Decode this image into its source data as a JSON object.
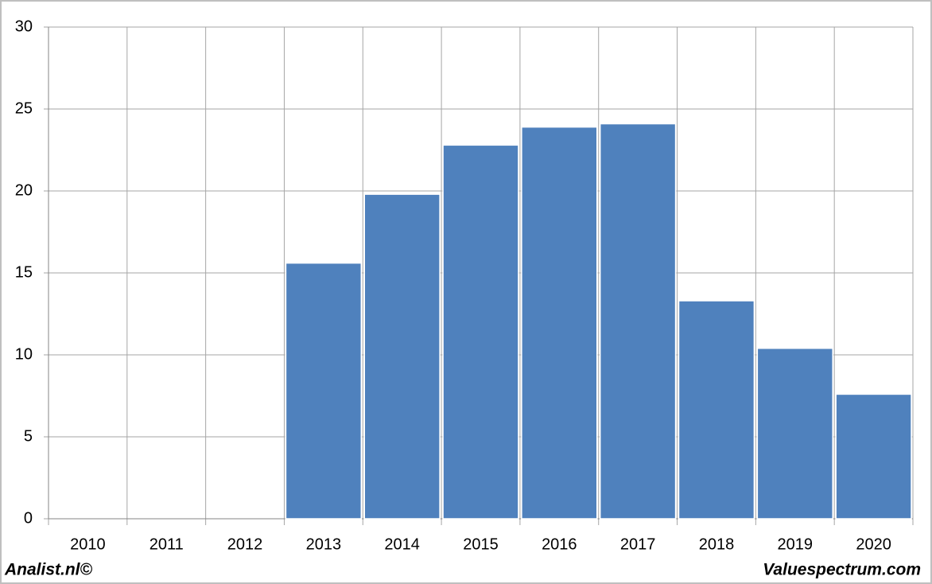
{
  "chart_data": {
    "type": "bar",
    "categories": [
      "2010",
      "2011",
      "2012",
      "2013",
      "2014",
      "2015",
      "2016",
      "2017",
      "2018",
      "2019",
      "2020"
    ],
    "values": [
      null,
      null,
      null,
      15.6,
      19.8,
      22.8,
      23.9,
      24.1,
      13.3,
      10.4,
      7.6
    ],
    "color": "#4f81bd",
    "ylim": [
      0,
      30
    ],
    "yticks": [
      0,
      5,
      10,
      15,
      20,
      25,
      30
    ],
    "grid": true,
    "source_left": "Analist.nl©",
    "source_right": "Valuespectrum.com"
  }
}
